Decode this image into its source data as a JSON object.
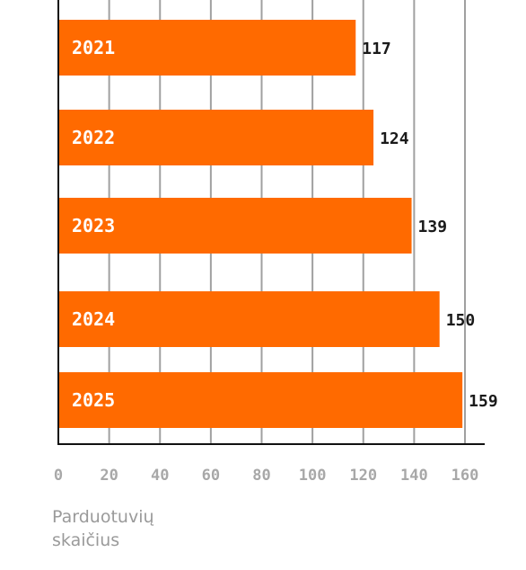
{
  "chart_data": {
    "type": "bar",
    "orientation": "horizontal",
    "categories": [
      "2021",
      "2022",
      "2023",
      "2024",
      "2025"
    ],
    "values": [
      117,
      124,
      139,
      150,
      159
    ],
    "title": "",
    "xlabel": "Parduotuvių\nskaičius",
    "ylabel": "",
    "xlim": [
      0,
      160
    ],
    "xticks": [
      "0",
      "20",
      "40",
      "60",
      "80",
      "100",
      "120",
      "140",
      "160"
    ],
    "grid": true,
    "bar_color": "#ff6a00",
    "category_label_color": "#ffffff",
    "value_label_color": "#1a1a1a",
    "tick_label_color": "#a8a8a8",
    "gridline_color": "#a0a0a0",
    "axis_color": "#111111"
  }
}
